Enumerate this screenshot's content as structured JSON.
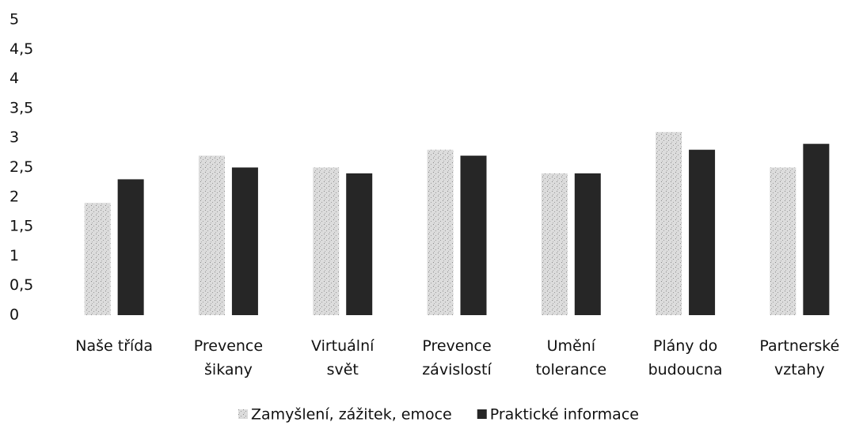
{
  "chart_data": {
    "type": "bar",
    "categories": [
      [
        "Naše třída"
      ],
      [
        "Prevence",
        "šikany"
      ],
      [
        "Virtuální",
        "svět"
      ],
      [
        "Prevence",
        "závislostí"
      ],
      [
        "Umění",
        "tolerance"
      ],
      [
        "Plány do",
        "budoucna"
      ],
      [
        "Partnerské",
        "vztahy"
      ]
    ],
    "series": [
      {
        "name": "Zamyšlení, zážitek, emoce",
        "color": "#cdcdcd",
        "values": [
          1.9,
          2.7,
          2.5,
          2.8,
          2.4,
          3.1,
          2.5
        ]
      },
      {
        "name": "Praktické informace",
        "color": "#262626",
        "values": [
          2.3,
          2.5,
          2.4,
          2.7,
          2.4,
          2.8,
          2.9
        ]
      }
    ],
    "ylim": [
      0,
      5
    ],
    "yticks": [
      0,
      {
        "value": 0.5,
        "label": "0,5"
      },
      1,
      {
        "value": 1.5,
        "label": "1,5"
      },
      2,
      {
        "value": 2.5,
        "label": "2,5"
      },
      3,
      {
        "value": 3.5,
        "label": "3,5"
      },
      4,
      {
        "value": 4.5,
        "label": "4,5"
      },
      5
    ],
    "grid": false,
    "legend": "bottom"
  }
}
